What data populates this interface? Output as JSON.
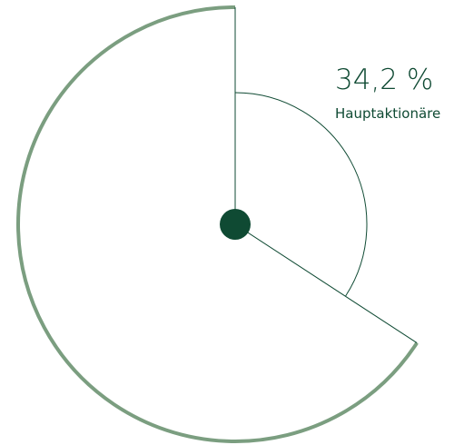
{
  "chart_data": {
    "type": "pie",
    "slices": [
      {
        "label": "Hauptaktionäre",
        "percent": 34.2,
        "display": "34,2 %"
      },
      {
        "label": "",
        "percent": 65.8
      }
    ],
    "colors": {
      "outline": "#7b9e80",
      "line": "#0f4a33",
      "dot": "#0f4a33",
      "text": "#0f4a33"
    }
  }
}
